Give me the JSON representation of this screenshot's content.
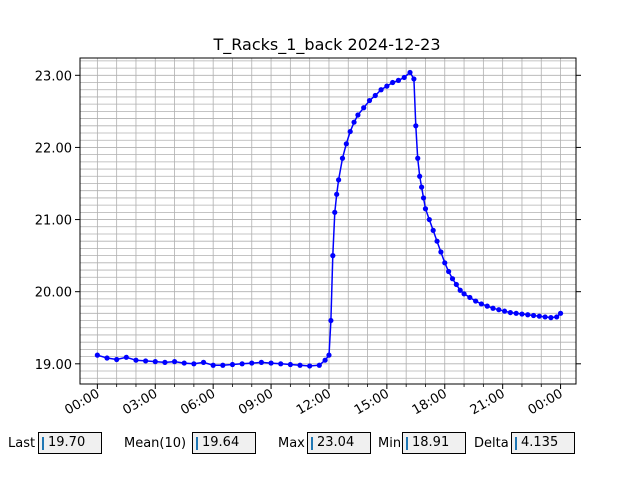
{
  "chart_data": {
    "type": "line",
    "title": "T_Racks_1_back 2024-12-23",
    "xlabel": "",
    "ylabel": "",
    "x_ticks": [
      "00:00",
      "03:00",
      "06:00",
      "09:00",
      "12:00",
      "15:00",
      "18:00",
      "21:00",
      "00:00"
    ],
    "x_tick_hours": [
      0,
      3,
      6,
      9,
      12,
      15,
      18,
      21,
      24
    ],
    "xlim_hours": [
      -0.9,
      24.8
    ],
    "y_ticks": [
      "19.00",
      "20.00",
      "21.00",
      "22.00",
      "23.00"
    ],
    "y_tick_values": [
      19,
      20,
      21,
      22,
      23
    ],
    "ylim": [
      18.72,
      23.24
    ],
    "grid": true,
    "line_color": "#0000ff",
    "series": [
      {
        "x_hours": [
          0.0,
          0.5,
          1.0,
          1.5,
          2.0,
          2.5,
          3.0,
          3.5,
          4.0,
          4.5,
          5.0,
          5.5,
          6.0,
          6.5,
          7.0,
          7.5,
          8.0,
          8.5,
          9.0,
          9.5,
          10.0,
          10.5,
          11.0,
          11.5,
          11.8,
          12.0,
          12.1,
          12.2,
          12.3,
          12.4,
          12.5,
          12.7,
          12.9,
          13.1,
          13.3,
          13.5,
          13.8,
          14.1,
          14.4,
          14.7,
          15.0,
          15.3,
          15.6,
          15.9,
          16.2,
          16.4,
          16.5,
          16.6,
          16.7,
          16.8,
          16.9,
          17.0,
          17.2,
          17.4,
          17.6,
          17.8,
          18.0,
          18.2,
          18.4,
          18.6,
          18.8,
          19.0,
          19.3,
          19.6,
          19.9,
          20.2,
          20.5,
          20.8,
          21.1,
          21.4,
          21.7,
          22.0,
          22.3,
          22.6,
          22.9,
          23.2,
          23.5,
          23.8,
          24.0
        ],
        "values": [
          19.12,
          19.08,
          19.06,
          19.09,
          19.05,
          19.04,
          19.03,
          19.02,
          19.03,
          19.01,
          19.0,
          19.02,
          18.98,
          18.98,
          18.99,
          19.0,
          19.01,
          19.02,
          19.01,
          19.0,
          18.99,
          18.98,
          18.97,
          18.98,
          19.05,
          19.12,
          19.6,
          20.5,
          21.1,
          21.35,
          21.55,
          21.85,
          22.05,
          22.22,
          22.35,
          22.45,
          22.55,
          22.65,
          22.72,
          22.8,
          22.85,
          22.9,
          22.93,
          22.97,
          23.04,
          22.95,
          22.3,
          21.85,
          21.6,
          21.45,
          21.3,
          21.15,
          21.0,
          20.85,
          20.7,
          20.55,
          20.4,
          20.28,
          20.18,
          20.1,
          20.02,
          19.97,
          19.92,
          19.87,
          19.83,
          19.8,
          19.77,
          19.75,
          19.73,
          19.71,
          19.7,
          19.69,
          19.68,
          19.67,
          19.66,
          19.65,
          19.64,
          19.65,
          19.7
        ]
      }
    ]
  },
  "stats": [
    {
      "label": "Last",
      "value": "19.70"
    },
    {
      "label": "Mean(10)",
      "value": "19.64"
    },
    {
      "label": "Max",
      "value": "23.04"
    },
    {
      "label": "Min",
      "value": "18.91"
    },
    {
      "label": "Delta",
      "value": "4.135"
    }
  ]
}
